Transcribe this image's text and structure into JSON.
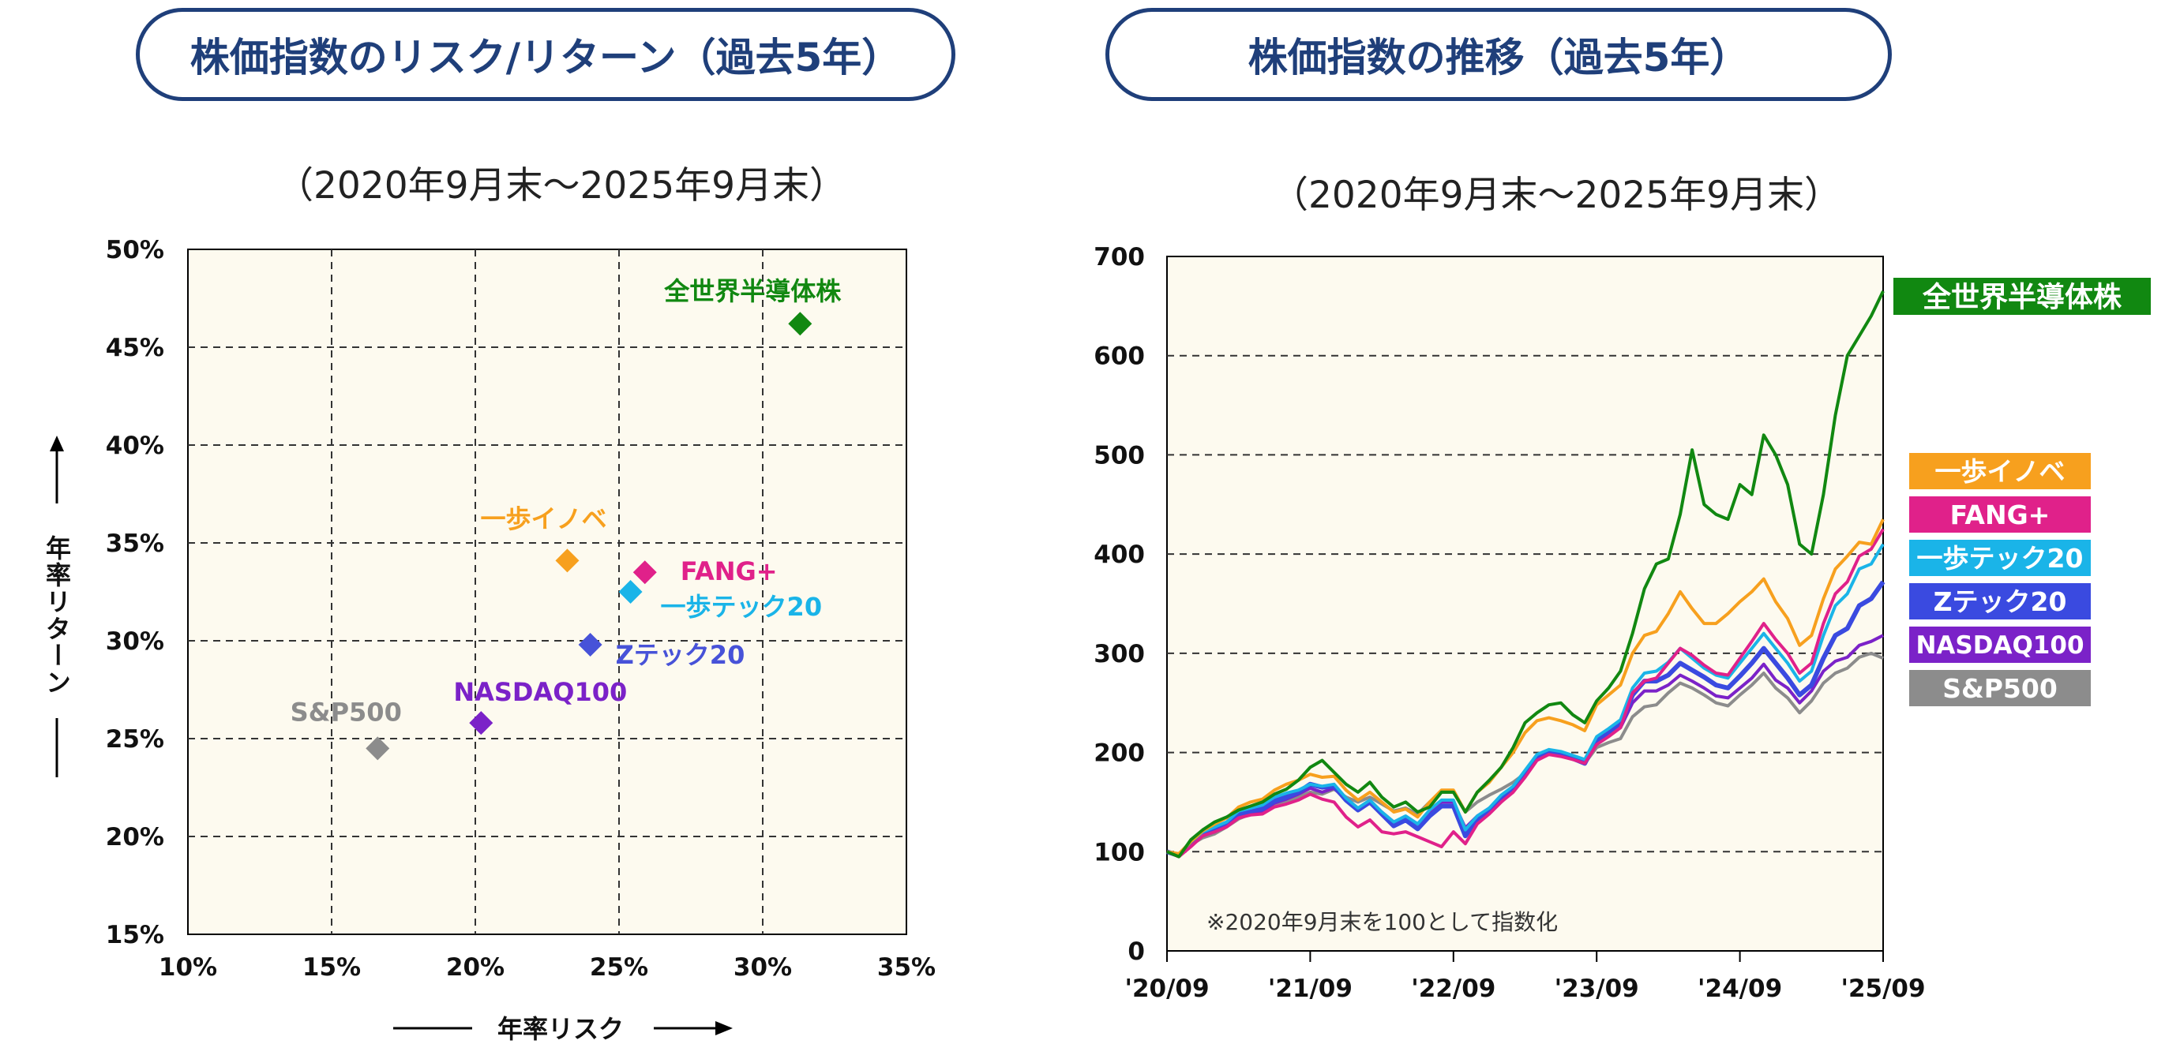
{
  "left": {
    "title": "株価指数のリスク/リターン（過去5年）",
    "subtitle": "（2020年9月末～2025年9月末）",
    "chart_data": {
      "type": "scatter",
      "xlabel": "年率リスク",
      "ylabel": "年率リターン",
      "xlim": [
        10,
        35
      ],
      "ylim": [
        15,
        50
      ],
      "xticks": [
        "10%",
        "15%",
        "20%",
        "25%",
        "30%",
        "35%"
      ],
      "yticks": [
        "50%",
        "45%",
        "40%",
        "35%",
        "30%",
        "25%",
        "20%",
        "15%"
      ],
      "grid": true,
      "points": [
        {
          "name": "全世界半導体株",
          "x": 31.3,
          "y": 46.2,
          "color": "#118811"
        },
        {
          "name": "一歩イノベ",
          "x": 23.2,
          "y": 34.1,
          "color": "#f7a01e"
        },
        {
          "name": "FANG+",
          "x": 25.9,
          "y": 33.5,
          "color": "#e0218a"
        },
        {
          "name": "一歩テック20",
          "x": 25.4,
          "y": 32.5,
          "color": "#1ab4e8"
        },
        {
          "name": "Zテック20",
          "x": 24.0,
          "y": 29.8,
          "color": "#4752d8"
        },
        {
          "name": "NASDAQ100",
          "x": 20.2,
          "y": 25.8,
          "color": "#7b22c8"
        },
        {
          "name": "S&P500",
          "x": 16.6,
          "y": 24.5,
          "color": "#8c8c8c"
        }
      ]
    }
  },
  "right": {
    "title": "株価指数の推移（過去5年）",
    "subtitle": "（2020年9月末～2025年9月末）",
    "note": "※2020年9月末を100として指数化",
    "chart_data": {
      "type": "line",
      "ylim": [
        0,
        700
      ],
      "yticks": [
        "700",
        "600",
        "500",
        "400",
        "300",
        "200",
        "100",
        "0"
      ],
      "xlim": [
        0,
        60
      ],
      "xtick_labels": [
        "'20/09",
        "'21/09",
        "'22/09",
        "'23/09",
        "'24/09",
        "'25/09"
      ],
      "grid": true,
      "series": [
        {
          "name": "S&P500",
          "color": "#8c8c8c",
          "values": [
            100,
            97,
            107,
            114,
            118,
            125,
            133,
            138,
            141,
            147,
            150,
            155,
            160,
            158,
            163,
            155,
            150,
            155,
            148,
            141,
            144,
            138,
            150,
            160,
            160,
            140,
            150,
            157,
            163,
            170,
            179,
            195,
            198,
            197,
            193,
            189,
            205,
            210,
            214,
            236,
            246,
            248,
            260,
            270,
            265,
            258,
            250,
            247,
            258,
            268,
            280,
            265,
            255,
            240,
            252,
            270,
            280,
            285,
            296,
            300,
            295
          ]
        },
        {
          "name": "NASDAQ100",
          "color": "#7b22c8",
          "values": [
            100,
            96,
            107,
            116,
            120,
            127,
            136,
            139,
            141,
            149,
            153,
            158,
            164,
            160,
            164,
            152,
            143,
            150,
            140,
            130,
            135,
            128,
            140,
            150,
            150,
            124,
            136,
            144,
            155,
            164,
            178,
            195,
            200,
            199,
            194,
            189,
            211,
            217,
            225,
            250,
            262,
            262,
            268,
            278,
            272,
            265,
            257,
            255,
            265,
            275,
            289,
            273,
            265,
            250,
            262,
            282,
            292,
            296,
            308,
            312,
            318
          ]
        },
        {
          "name": "Zテック20",
          "color": "#3a4ae0",
          "values": [
            100,
            96,
            108,
            118,
            122,
            128,
            138,
            141,
            143,
            151,
            155,
            160,
            168,
            165,
            166,
            152,
            142,
            150,
            138,
            126,
            132,
            123,
            136,
            146,
            146,
            116,
            132,
            140,
            153,
            162,
            177,
            194,
            200,
            199,
            194,
            189,
            212,
            220,
            228,
            258,
            272,
            272,
            278,
            290,
            283,
            276,
            268,
            265,
            277,
            290,
            305,
            290,
            275,
            258,
            268,
            295,
            318,
            325,
            348,
            355,
            372
          ]
        },
        {
          "name": "一歩テック20",
          "color": "#1ab4e8",
          "values": [
            100,
            97,
            110,
            120,
            125,
            130,
            141,
            144,
            147,
            155,
            159,
            162,
            168,
            166,
            168,
            154,
            144,
            152,
            140,
            130,
            136,
            128,
            142,
            152,
            152,
            122,
            136,
            144,
            157,
            166,
            182,
            198,
            203,
            201,
            197,
            193,
            216,
            224,
            233,
            265,
            280,
            282,
            291,
            305,
            295,
            285,
            278,
            275,
            290,
            305,
            320,
            305,
            290,
            272,
            282,
            318,
            348,
            360,
            385,
            390,
            410
          ]
        },
        {
          "name": "FANG+",
          "color": "#e0218a",
          "values": [
            100,
            95,
            105,
            116,
            120,
            125,
            134,
            137,
            138,
            145,
            148,
            152,
            158,
            153,
            150,
            135,
            125,
            132,
            120,
            118,
            120,
            115,
            110,
            105,
            120,
            108,
            128,
            138,
            150,
            160,
            175,
            192,
            198,
            196,
            193,
            189,
            208,
            216,
            225,
            260,
            272,
            275,
            290,
            305,
            298,
            288,
            280,
            278,
            295,
            312,
            330,
            314,
            300,
            280,
            290,
            330,
            360,
            372,
            398,
            405,
            425
          ]
        },
        {
          "name": "一歩イノベ",
          "color": "#f7a01e",
          "values": [
            100,
            98,
            110,
            121,
            128,
            134,
            145,
            150,
            153,
            162,
            168,
            172,
            178,
            175,
            176,
            162,
            152,
            160,
            150,
            140,
            143,
            135,
            150,
            162,
            162,
            140,
            160,
            170,
            185,
            200,
            220,
            232,
            235,
            232,
            228,
            222,
            248,
            258,
            268,
            300,
            318,
            322,
            340,
            362,
            345,
            330,
            330,
            340,
            352,
            362,
            375,
            352,
            335,
            308,
            318,
            355,
            385,
            398,
            412,
            410,
            435
          ]
        },
        {
          "name": "全世界半導体株",
          "color": "#118811",
          "values": [
            100,
            95,
            112,
            122,
            130,
            135,
            142,
            146,
            150,
            158,
            163,
            172,
            185,
            192,
            180,
            168,
            160,
            170,
            155,
            145,
            150,
            140,
            145,
            160,
            160,
            140,
            160,
            172,
            185,
            205,
            230,
            240,
            248,
            250,
            238,
            230,
            252,
            265,
            282,
            320,
            365,
            390,
            395,
            440,
            505,
            450,
            440,
            435,
            470,
            460,
            520,
            500,
            470,
            410,
            400,
            460,
            540,
            600,
            620,
            640,
            665
          ]
        }
      ]
    }
  }
}
